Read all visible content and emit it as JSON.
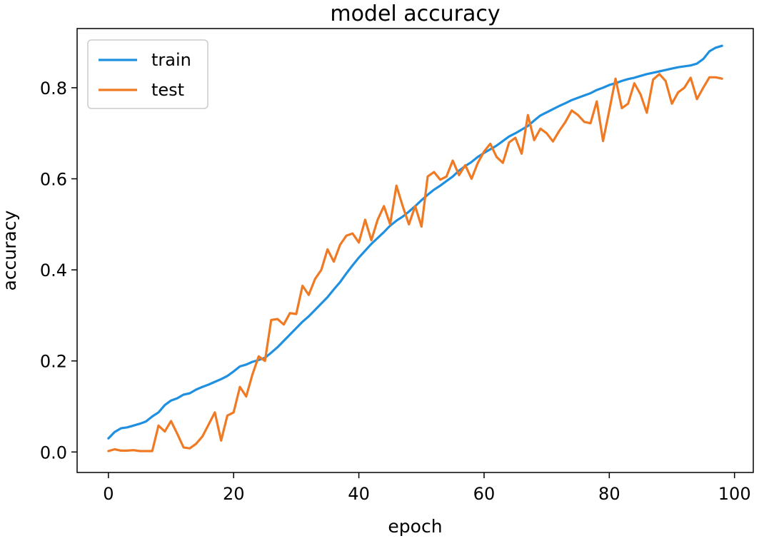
{
  "chart_data": {
    "type": "line",
    "title": "model accuracy",
    "xlabel": "epoch",
    "ylabel": "accuracy",
    "xlim": [
      -5,
      103
    ],
    "ylim": [
      -0.045,
      0.93
    ],
    "xticks": [
      0,
      20,
      40,
      60,
      80,
      100
    ],
    "yticks": [
      0.0,
      0.2,
      0.4,
      0.6,
      0.8
    ],
    "xtick_labels": [
      "0",
      "20",
      "40",
      "60",
      "80",
      "100"
    ],
    "ytick_labels": [
      "0.0",
      "0.2",
      "0.4",
      "0.6",
      "0.8"
    ],
    "grid": false,
    "legend_position": "upper-left",
    "series": [
      {
        "name": "train",
        "color": "#1f8fe0",
        "x": [
          0,
          1,
          2,
          3,
          4,
          5,
          6,
          7,
          8,
          9,
          10,
          11,
          12,
          13,
          14,
          15,
          16,
          17,
          18,
          19,
          20,
          21,
          22,
          23,
          24,
          25,
          26,
          27,
          28,
          29,
          30,
          31,
          32,
          33,
          34,
          35,
          36,
          37,
          38,
          39,
          40,
          41,
          42,
          43,
          44,
          45,
          46,
          47,
          48,
          49,
          50,
          51,
          52,
          53,
          54,
          55,
          56,
          57,
          58,
          59,
          60,
          61,
          62,
          63,
          64,
          65,
          66,
          67,
          68,
          69,
          70,
          71,
          72,
          73,
          74,
          75,
          76,
          77,
          78,
          79,
          80,
          81,
          82,
          83,
          84,
          85,
          86,
          87,
          88,
          89,
          90,
          91,
          92,
          93,
          94,
          95,
          96,
          97,
          98
        ],
        "y": [
          0.03,
          0.044,
          0.052,
          0.054,
          0.058,
          0.062,
          0.067,
          0.078,
          0.087,
          0.103,
          0.113,
          0.118,
          0.126,
          0.129,
          0.137,
          0.143,
          0.148,
          0.154,
          0.16,
          0.167,
          0.177,
          0.188,
          0.192,
          0.198,
          0.202,
          0.207,
          0.218,
          0.23,
          0.244,
          0.258,
          0.272,
          0.286,
          0.298,
          0.312,
          0.326,
          0.34,
          0.357,
          0.373,
          0.392,
          0.41,
          0.427,
          0.442,
          0.457,
          0.47,
          0.483,
          0.497,
          0.508,
          0.517,
          0.528,
          0.54,
          0.553,
          0.565,
          0.576,
          0.585,
          0.595,
          0.605,
          0.618,
          0.628,
          0.637,
          0.648,
          0.657,
          0.665,
          0.673,
          0.683,
          0.693,
          0.7,
          0.708,
          0.716,
          0.728,
          0.739,
          0.746,
          0.753,
          0.76,
          0.766,
          0.773,
          0.778,
          0.783,
          0.788,
          0.795,
          0.8,
          0.806,
          0.81,
          0.815,
          0.819,
          0.822,
          0.826,
          0.83,
          0.833,
          0.836,
          0.839,
          0.842,
          0.845,
          0.847,
          0.849,
          0.853,
          0.863,
          0.88,
          0.888,
          0.892
        ]
      },
      {
        "name": "test",
        "color": "#f07a24",
        "x": [
          0,
          1,
          2,
          3,
          4,
          5,
          6,
          7,
          8,
          9,
          10,
          11,
          12,
          13,
          14,
          15,
          16,
          17,
          18,
          19,
          20,
          21,
          22,
          23,
          24,
          25,
          26,
          27,
          28,
          29,
          30,
          31,
          32,
          33,
          34,
          35,
          36,
          37,
          38,
          39,
          40,
          41,
          42,
          43,
          44,
          45,
          46,
          47,
          48,
          49,
          50,
          51,
          52,
          53,
          54,
          55,
          56,
          57,
          58,
          59,
          60,
          61,
          62,
          63,
          64,
          65,
          66,
          67,
          68,
          69,
          70,
          71,
          72,
          73,
          74,
          75,
          76,
          77,
          78,
          79,
          80,
          81,
          82,
          83,
          84,
          85,
          86,
          87,
          88,
          89,
          90,
          91,
          92,
          93,
          94,
          95,
          96,
          97,
          98
        ],
        "y": [
          0.002,
          0.006,
          0.003,
          0.003,
          0.004,
          0.002,
          0.002,
          0.002,
          0.058,
          0.045,
          0.068,
          0.04,
          0.01,
          0.008,
          0.018,
          0.034,
          0.06,
          0.087,
          0.025,
          0.08,
          0.087,
          0.143,
          0.122,
          0.17,
          0.21,
          0.2,
          0.29,
          0.292,
          0.28,
          0.305,
          0.303,
          0.365,
          0.345,
          0.38,
          0.4,
          0.445,
          0.418,
          0.455,
          0.475,
          0.48,
          0.46,
          0.51,
          0.465,
          0.51,
          0.54,
          0.5,
          0.585,
          0.54,
          0.5,
          0.54,
          0.495,
          0.605,
          0.615,
          0.598,
          0.605,
          0.64,
          0.608,
          0.63,
          0.6,
          0.635,
          0.66,
          0.677,
          0.648,
          0.635,
          0.68,
          0.69,
          0.655,
          0.74,
          0.685,
          0.71,
          0.7,
          0.682,
          0.705,
          0.725,
          0.75,
          0.74,
          0.725,
          0.722,
          0.77,
          0.683,
          0.75,
          0.82,
          0.755,
          0.765,
          0.81,
          0.785,
          0.745,
          0.818,
          0.83,
          0.815,
          0.765,
          0.79,
          0.8,
          0.822,
          0.775,
          0.8,
          0.823,
          0.823,
          0.82
        ]
      }
    ]
  }
}
